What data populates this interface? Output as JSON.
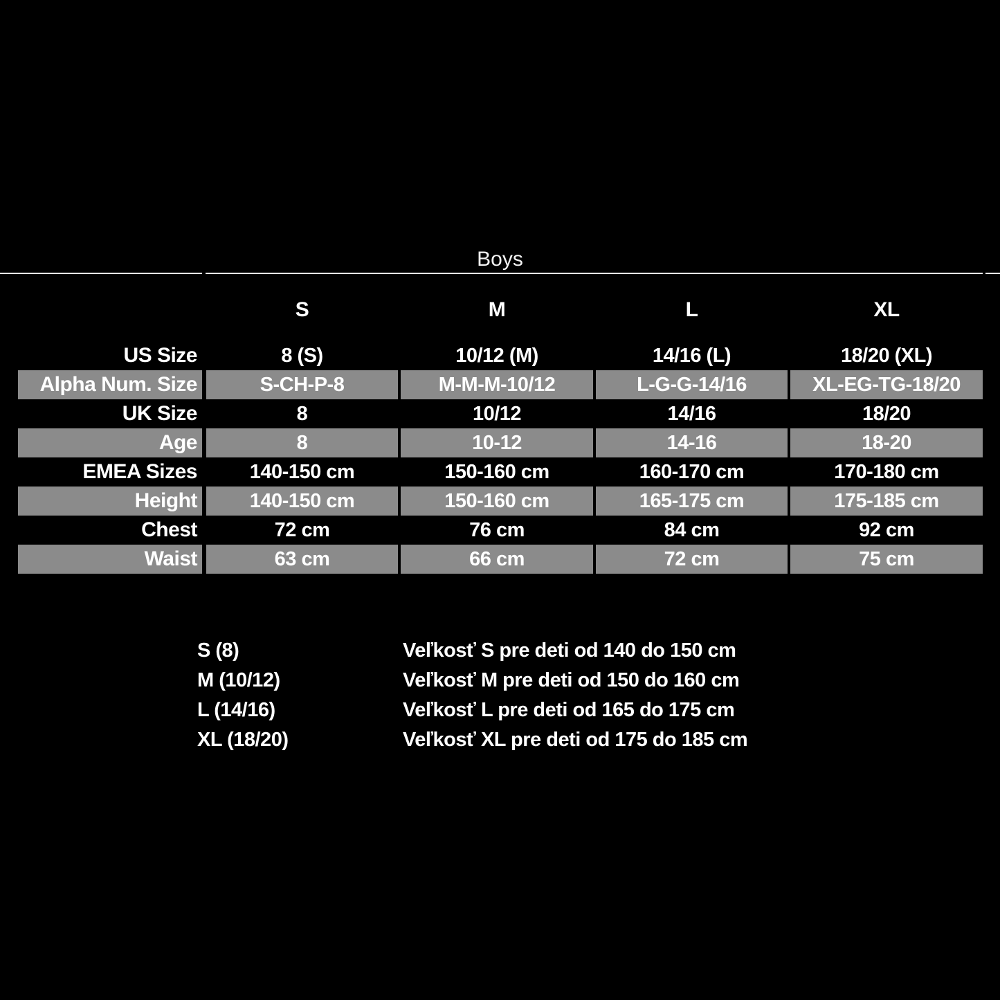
{
  "colors": {
    "background": "#000000",
    "row_highlight": "#8b8b8b",
    "text": "#ffffff",
    "rule": "#e9e9e9"
  },
  "chart_data": {
    "type": "table",
    "title": "Boys",
    "columns": [
      "S",
      "M",
      "L",
      "XL"
    ],
    "rows": [
      {
        "label": "US Size",
        "highlight": false,
        "cells": [
          "8 (S)",
          "10/12 (M)",
          "14/16 (L)",
          "18/20 (XL)"
        ]
      },
      {
        "label": "Alpha Num. Size",
        "highlight": true,
        "cells": [
          "S-CH-P-8",
          "M-M-M-10/12",
          "L-G-G-14/16",
          "XL-EG-TG-18/20"
        ]
      },
      {
        "label": "UK Size",
        "highlight": false,
        "cells": [
          "8",
          "10/12",
          "14/16",
          "18/20"
        ]
      },
      {
        "label": "Age",
        "highlight": true,
        "cells": [
          "8",
          "10-12",
          "14-16",
          "18-20"
        ]
      },
      {
        "label": "EMEA Sizes",
        "highlight": false,
        "cells": [
          "140-150 cm",
          "150-160 cm",
          "160-170 cm",
          "170-180 cm"
        ]
      },
      {
        "label": "Height",
        "highlight": true,
        "cells": [
          "140-150 cm",
          "150-160 cm",
          "165-175 cm",
          "175-185 cm"
        ]
      },
      {
        "label": "Chest",
        "highlight": false,
        "cells": [
          "72 cm",
          "76 cm",
          "84 cm",
          "92 cm"
        ]
      },
      {
        "label": "Waist",
        "highlight": true,
        "cells": [
          "63 cm",
          "66 cm",
          "72 cm",
          "75 cm"
        ]
      }
    ],
    "legend": [
      {
        "label": "S (8)",
        "text": "Veľkosť S pre deti od 140 do 150 cm"
      },
      {
        "label": "M (10/12)",
        "text": "Veľkosť M pre deti od 150 do 160 cm"
      },
      {
        "label": "L (14/16)",
        "text": "Veľkosť L pre deti od 165 do 175 cm"
      },
      {
        "label": "XL (18/20)",
        "text": "Veľkosť XL pre deti od 175 do 185 cm"
      }
    ]
  }
}
